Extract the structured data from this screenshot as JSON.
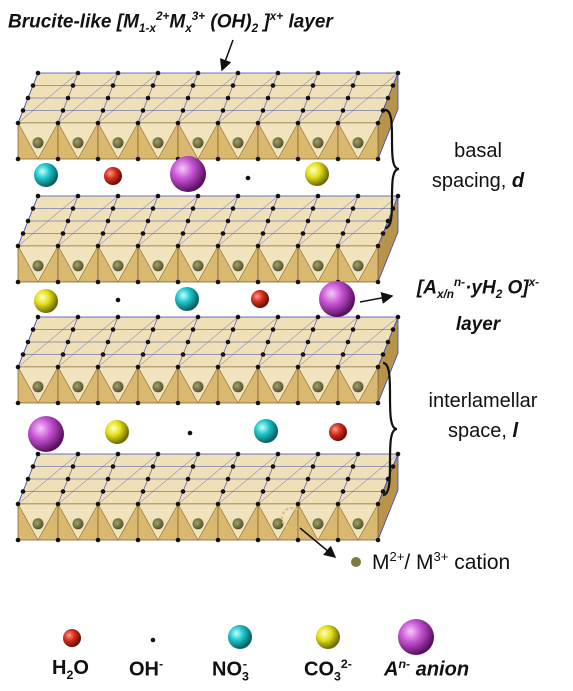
{
  "title": {
    "prefix": "Brucite-like [M",
    "sub1": "1-x",
    "sup1": "2+",
    "m2": "M",
    "sub2": "x",
    "sup2": "3+",
    "oh": " (OH)",
    "sub3": "2",
    "close": " ]",
    "sup3": "x+",
    "suffix": " layer"
  },
  "right_labels": {
    "basal_line1": "basal",
    "basal_line2": "spacing, ",
    "basal_var": "d",
    "anion_layer": {
      "open": "[A",
      "sub": "x/n",
      "sup": "n-",
      "mid": "·yH",
      "sub2": "2",
      "o": " O]",
      "sup2": "x-"
    },
    "anion_layer_line2": "layer",
    "inter_line1": "interlamellar",
    "inter_line2": "space, ",
    "inter_var": "l",
    "cation_base": "M",
    "cation_sup1": "2+",
    "cation_mid": "/ M",
    "cation_sup2": "3+",
    "cation_tail": " cation"
  },
  "legend": [
    {
      "kind": "h2o",
      "base": "H",
      "sub": "2",
      "tail": "O",
      "sup": ""
    },
    {
      "kind": "oh",
      "base": "OH",
      "sub": "",
      "tail": "",
      "sup": "-"
    },
    {
      "kind": "no3",
      "base": "NO",
      "sub": "3",
      "tail": "",
      "sup": "-"
    },
    {
      "kind": "co3",
      "base": "CO",
      "sub": "3",
      "tail": "",
      "sup": "2-"
    },
    {
      "kind": "anion",
      "base": "A",
      "sub": "",
      "tail": " anion",
      "sup": "n-"
    }
  ],
  "colors": {
    "h2o": "#d02b1a",
    "oh": "#111111",
    "no3": "#19c3c8",
    "co3": "#e2de16",
    "anion": "#c24fcf",
    "octa_front": "#d9b86f",
    "octa_top": "#efe0b8",
    "edge": "#3b48b8",
    "cation": "#7b7a3f"
  }
}
